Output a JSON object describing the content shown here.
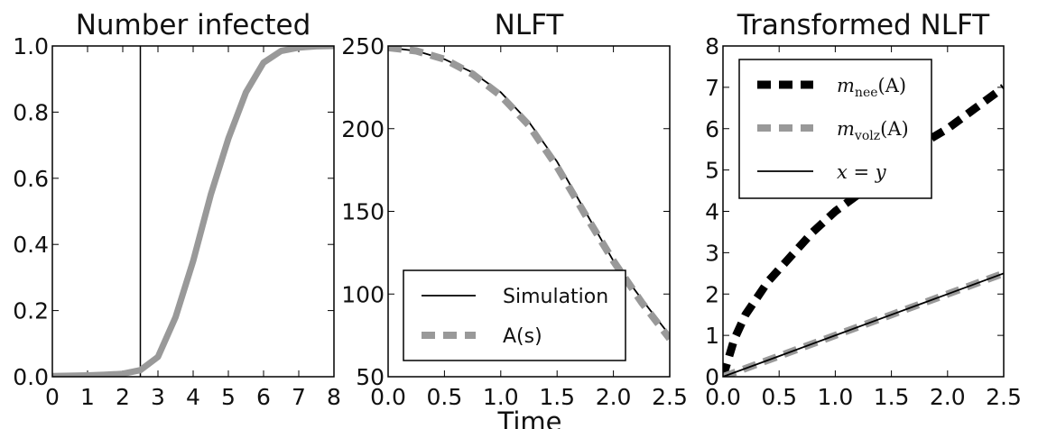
{
  "figure": {
    "shared_xlabel": "Time"
  },
  "chart_data": [
    {
      "type": "line",
      "title": "Number infected",
      "xlim": [
        0,
        8
      ],
      "ylim": [
        0,
        1
      ],
      "xticks": [
        0,
        1,
        2,
        3,
        4,
        5,
        6,
        7,
        8
      ],
      "xtick_labels": [
        "0",
        "1",
        "2",
        "3",
        "4",
        "5",
        "6",
        "7",
        "8"
      ],
      "yticks": [
        0,
        0.2,
        0.4,
        0.6,
        0.8,
        1.0
      ],
      "ytick_labels": [
        "0.0",
        "0.2",
        "0.4",
        "0.6",
        "0.8",
        "1.0"
      ],
      "grid": false,
      "vline_x": 2.5,
      "series": [
        {
          "color": "#999999",
          "style": "solid",
          "x": [
            0,
            0.5,
            1,
            1.5,
            2,
            2.5,
            3,
            3.5,
            4,
            4.5,
            5,
            5.5,
            6,
            6.5,
            7,
            7.5,
            8
          ],
          "y": [
            0.002,
            0.003,
            0.004,
            0.006,
            0.009,
            0.02,
            0.06,
            0.18,
            0.35,
            0.55,
            0.72,
            0.86,
            0.95,
            0.985,
            0.995,
            0.999,
            1.0
          ]
        }
      ]
    },
    {
      "type": "line",
      "title": "NLFT",
      "xlim": [
        0,
        2.5
      ],
      "ylim": [
        50,
        250
      ],
      "xticks": [
        0,
        0.5,
        1,
        1.5,
        2,
        2.5
      ],
      "xtick_labels": [
        "0.0",
        "0.5",
        "1.0",
        "1.5",
        "2.0",
        "2.5"
      ],
      "yticks": [
        50,
        100,
        150,
        200,
        250
      ],
      "ytick_labels": [
        "50",
        "100",
        "150",
        "200",
        "250"
      ],
      "grid": false,
      "legend": {
        "position": "lower-right"
      },
      "series": [
        {
          "name": "Simulation",
          "color": "#000000",
          "style": "solid",
          "x": [
            0,
            0.25,
            0.5,
            0.75,
            1,
            1.25,
            1.5,
            1.75,
            2,
            2.25,
            2.5
          ],
          "y": [
            249,
            247,
            242,
            234,
            222,
            204,
            180,
            150,
            120,
            97,
            75
          ]
        },
        {
          "name": "A(s)",
          "color": "#999999",
          "style": "dashed",
          "x": [
            0,
            0.25,
            0.5,
            0.75,
            1,
            1.25,
            1.5,
            1.75,
            2,
            2.25,
            2.5
          ],
          "y": [
            249,
            247,
            242,
            233,
            220,
            202,
            177,
            148,
            120,
            95,
            73
          ]
        }
      ]
    },
    {
      "type": "line",
      "title": "Transformed NLFT",
      "xlim": [
        0,
        2.5
      ],
      "ylim": [
        0,
        8
      ],
      "xticks": [
        0,
        0.5,
        1,
        1.5,
        2,
        2.5
      ],
      "xtick_labels": [
        "0.0",
        "0.5",
        "1.0",
        "1.5",
        "2.0",
        "2.5"
      ],
      "yticks": [
        0,
        1,
        2,
        3,
        4,
        5,
        6,
        7,
        8
      ],
      "ytick_labels": [
        "0",
        "1",
        "2",
        "3",
        "4",
        "5",
        "6",
        "7",
        "8"
      ],
      "grid": false,
      "legend": {
        "position": "top-left"
      },
      "series": [
        {
          "name_base": "m",
          "name_sub": "nee",
          "name_arg": "(A)",
          "color": "#000000",
          "style": "dashed",
          "x": [
            0,
            0.1,
            0.2,
            0.4,
            0.6,
            0.8,
            1,
            1.25,
            1.5,
            1.75,
            2,
            2.25,
            2.5
          ],
          "y": [
            0,
            0.9,
            1.5,
            2.3,
            2.9,
            3.5,
            4.0,
            4.5,
            5.1,
            5.6,
            6.0,
            6.5,
            7.0
          ]
        },
        {
          "name_base": "m",
          "name_sub": "volz",
          "name_arg": "(A)",
          "color": "#999999",
          "style": "dashed",
          "x": [
            0,
            0.5,
            1,
            1.5,
            2,
            2.5
          ],
          "y": [
            0,
            0.5,
            1.0,
            1.5,
            2.0,
            2.5
          ]
        },
        {
          "name_base": "x",
          "name_sub": "",
          "name_arg": "",
          "name_eq": "= y",
          "color": "#000000",
          "style": "solid",
          "x": [
            0,
            0.5,
            1,
            1.5,
            2,
            2.5
          ],
          "y": [
            0,
            0.5,
            1.0,
            1.5,
            2.0,
            2.5
          ]
        }
      ]
    }
  ]
}
